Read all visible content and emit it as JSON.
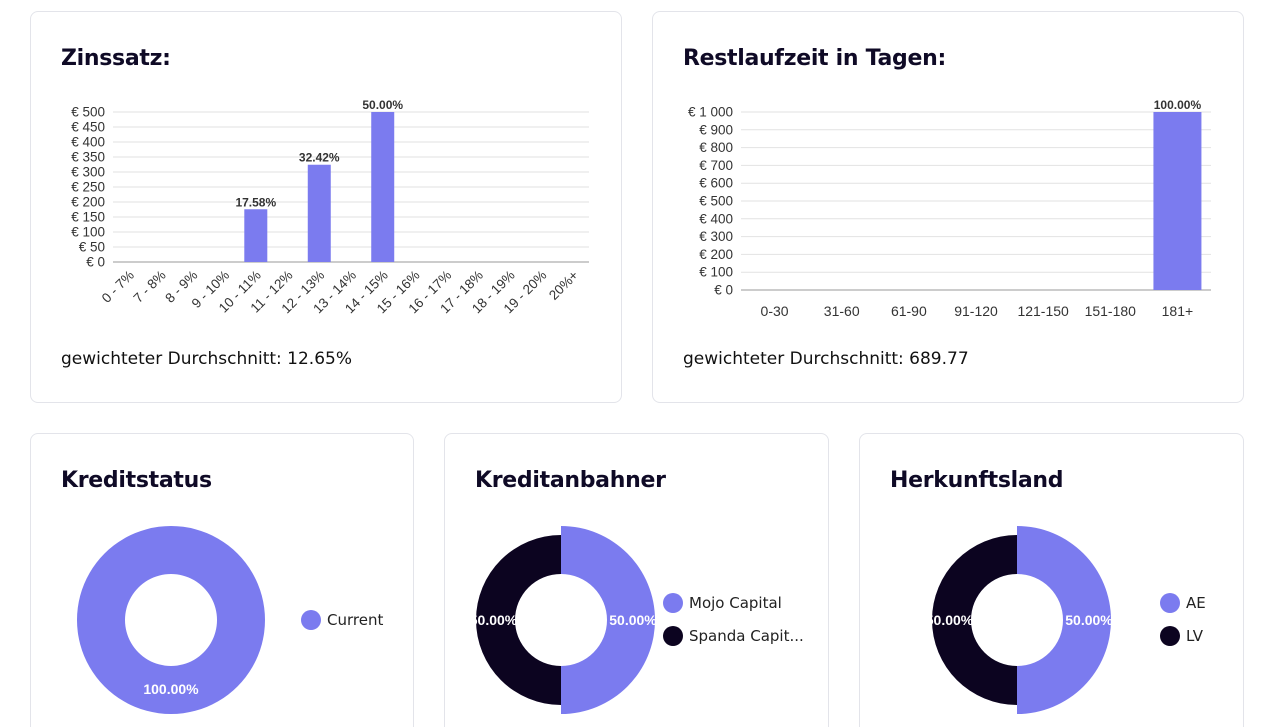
{
  "colors": {
    "accent": "#7b7bef",
    "dark": "#0c0420",
    "grid": "#e2e2e2",
    "axis": "#9a9a9a"
  },
  "zins": {
    "title": "Zinssatz:",
    "avg": "gewichteter Durchschnitt: 12.65%",
    "chart_data": {
      "type": "bar",
      "categories": [
        "0 - 7%",
        "7 - 8%",
        "8 - 9%",
        "9 - 10%",
        "10 - 11%",
        "11 - 12%",
        "12 - 13%",
        "13 - 14%",
        "14 - 15%",
        "15 - 16%",
        "16 - 17%",
        "17 - 18%",
        "18 - 19%",
        "19 - 20%",
        "20%+"
      ],
      "values": [
        0,
        0,
        0,
        0,
        175.8,
        0,
        324.2,
        0,
        500,
        0,
        0,
        0,
        0,
        0,
        0
      ],
      "labels": [
        "",
        "",
        "",
        "",
        "17.58%",
        "",
        "32.42%",
        "",
        "50.00%",
        "",
        "",
        "",
        "",
        "",
        ""
      ],
      "yticks": [
        "€ 0",
        "€ 50",
        "€ 100",
        "€ 150",
        "€ 200",
        "€ 250",
        "€ 300",
        "€ 350",
        "€ 400",
        "€ 450",
        "€ 500"
      ],
      "ylim": [
        0,
        500
      ],
      "grid": true
    }
  },
  "rest": {
    "title": "Restlaufzeit in Tagen:",
    "avg": "gewichteter Durchschnitt: 689.77",
    "chart_data": {
      "type": "bar",
      "categories": [
        "0-30",
        "31-60",
        "61-90",
        "91-120",
        "121-150",
        "151-180",
        "181+"
      ],
      "values": [
        0,
        0,
        0,
        0,
        0,
        0,
        1000
      ],
      "labels": [
        "",
        "",
        "",
        "",
        "",
        "",
        "100.00%"
      ],
      "yticks": [
        "€ 0",
        "€ 100",
        "€ 200",
        "€ 300",
        "€ 400",
        "€ 500",
        "€ 600",
        "€ 700",
        "€ 800",
        "€ 900",
        "€ 1 000"
      ],
      "ylim": [
        0,
        1000
      ],
      "grid": true
    }
  },
  "kredit": {
    "title": "Kreditstatus",
    "chart_data": {
      "type": "pie",
      "slices": [
        {
          "name": "Current",
          "value": 100,
          "label": "100.00%",
          "color": "#7b7bef"
        }
      ]
    }
  },
  "anbahner": {
    "title": "Kreditanbahner",
    "chart_data": {
      "type": "pie",
      "slices": [
        {
          "name": "Mojo Capital",
          "value": 50,
          "label": "50.00%",
          "color": "#7b7bef"
        },
        {
          "name": "Spanda Capit...",
          "value": 50,
          "label": "50.00%",
          "color": "#0c0420"
        }
      ]
    }
  },
  "land": {
    "title": "Herkunftsland",
    "chart_data": {
      "type": "pie",
      "slices": [
        {
          "name": "AE",
          "value": 50,
          "label": "50.00%",
          "color": "#7b7bef"
        },
        {
          "name": "LV",
          "value": 50,
          "label": "50.00%",
          "color": "#0c0420"
        }
      ]
    }
  }
}
